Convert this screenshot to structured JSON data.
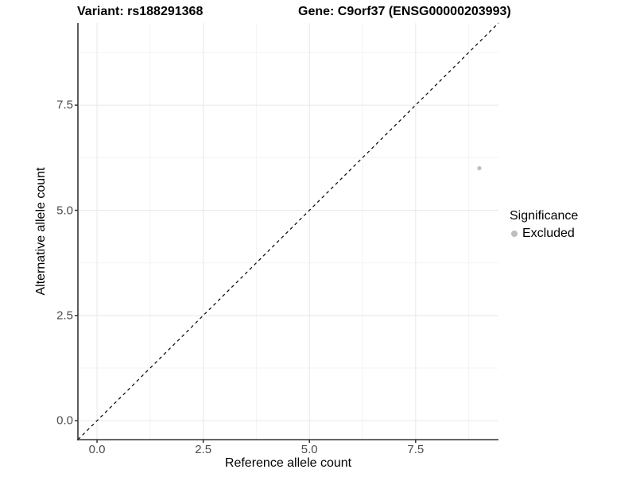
{
  "chart_data": {
    "type": "scatter",
    "title_left": "Variant: rs188291368",
    "title_right": "Gene: C9orf37 (ENSG00000203993)",
    "xlabel": "Reference allele count",
    "ylabel": "Alternative allele count",
    "xlim": [
      -0.45,
      9.45
    ],
    "ylim": [
      -0.45,
      9.45
    ],
    "x_ticks": {
      "values": [
        0,
        2.5,
        5,
        7.5
      ],
      "labels": [
        "0.0",
        "2.5",
        "5.0",
        "7.5"
      ]
    },
    "y_ticks": {
      "values": [
        0,
        2.5,
        5,
        7.5
      ],
      "labels": [
        "0.0",
        "2.5",
        "5.0",
        "7.5"
      ]
    },
    "x_minor": [
      1.25,
      3.75,
      6.25,
      8.75
    ],
    "y_minor": [
      1.25,
      3.75,
      6.25,
      8.75
    ],
    "grid": true,
    "reference_line": {
      "type": "identity",
      "slope": 1,
      "intercept": 0,
      "style": "dashed",
      "color": "#000000"
    },
    "series": [
      {
        "name": "Excluded",
        "color": "#bebebe",
        "points": [
          {
            "x": 9,
            "y": 6
          }
        ]
      }
    ],
    "legend": {
      "title": "Significance",
      "position": "right",
      "items": [
        {
          "label": "Excluded",
          "color": "#bebebe"
        }
      ]
    },
    "colors": {
      "grid_major": "#e8e8e8",
      "grid_minor": "#f3f3f3",
      "axis_line": "#333333",
      "tick_label": "#4d4d4d",
      "background": "#ffffff"
    }
  }
}
